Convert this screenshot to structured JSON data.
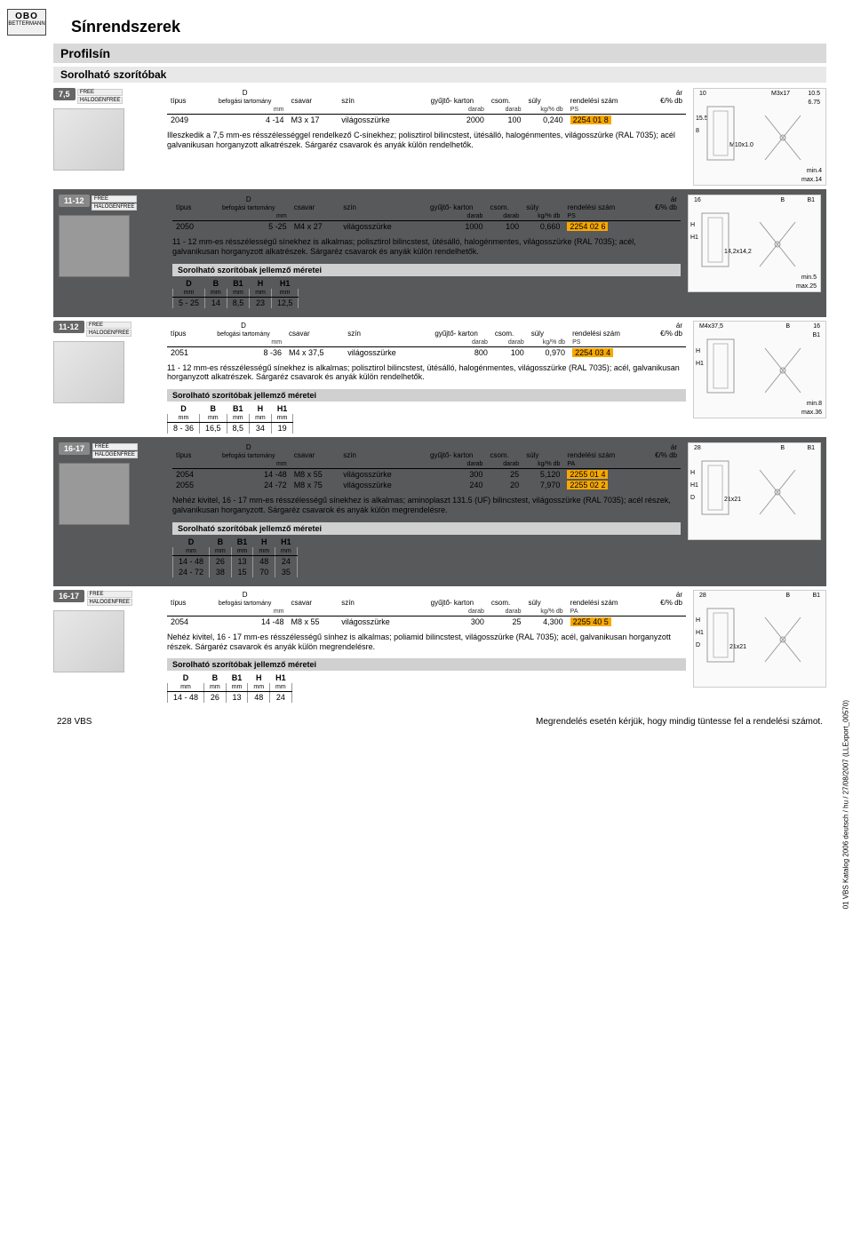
{
  "logo": {
    "brand": "OBO",
    "sub": "BETTERMANN"
  },
  "page_title": "Sínrendszerek",
  "section": "Profilsín",
  "subsection": "Sorolható szorítóbak",
  "headers": {
    "tipus": "típus",
    "D": "D",
    "D_sub": "befogási\ntartomány",
    "csavar": "csavar",
    "szin": "szín",
    "gyujto": "gyűjtő-\nkarton",
    "csom": "csom.",
    "suly": "súly",
    "rendelesi": "rendelési\nszám",
    "ar": "ár",
    "ar_unit": "€/% db"
  },
  "units": {
    "D": "mm",
    "gyujto": "darab",
    "csom": "darab",
    "suly": "kg/% db",
    "rend": "PS"
  },
  "dim_headers": [
    "D",
    "B",
    "B1",
    "H",
    "H1"
  ],
  "dim_units": [
    "mm",
    "mm",
    "mm",
    "mm",
    "mm"
  ],
  "dim_title": "Sorolható szorítóbak jellemző méretei",
  "blocks": [
    {
      "badge": "7,5",
      "dark": false,
      "rows": [
        {
          "tipus": "2049",
          "D": "4 -14",
          "csavar": "M3 x 17",
          "szin": "világosszürke",
          "gyujto": "2000",
          "csom": "100",
          "suly": "0,240",
          "rend": "2254 01 8"
        }
      ],
      "desc": "Illeszkedik a 7,5 mm-es résszélességgel rendelkező C-sínekhez; polisztirol bilincstest, ütésálló, halogénmentes, világosszürke (RAL 7035); acél galvanikusan horganyzott alkatrészek. Sárgaréz csavarok és anyák külön rendelhetők.",
      "draw": {
        "top_l": "10",
        "top_r": "M3x17",
        "top_r2": "10.5",
        "top_r3": "6.75",
        "side": "15.5",
        "side2": "8",
        "mid": "M10x1.0",
        "bot1": "min.4",
        "bot2": "max.14"
      },
      "dims": null
    },
    {
      "badge": "11-12",
      "dark": true,
      "rows": [
        {
          "tipus": "2050",
          "D": "5 -25",
          "csavar": "M4 x 27",
          "szin": "világosszürke",
          "gyujto": "1000",
          "csom": "100",
          "suly": "0,660",
          "rend": "2254 02 6"
        }
      ],
      "desc": "11 - 12 mm-es résszélességű sínekhez is alkalmas; polisztirol bilincstest, ütésálló, halogénmentes, világosszürke (RAL 7035); acél, galvanikusan horganyzott alkatrészek. Sárgaréz csavarok és anyák külön rendelhetők.",
      "draw": {
        "top_l": "16",
        "top_r": "B",
        "top_r2": "B1",
        "side": "H",
        "side2": "H1",
        "mid": "14,2x14,2",
        "bot1": "min.5",
        "bot2": "max.25"
      },
      "dims": [
        [
          "5 - 25",
          "14",
          "8,5",
          "23",
          "12,5"
        ]
      ]
    },
    {
      "badge": "11-12",
      "dark": false,
      "rows": [
        {
          "tipus": "2051",
          "D": "8 -36",
          "csavar": "M4 x 37,5",
          "szin": "világosszürke",
          "gyujto": "800",
          "csom": "100",
          "suly": "0,970",
          "rend": "2254 03 4"
        }
      ],
      "desc": "11 - 12 mm-es résszélességű sínekhez is alkalmas; polisztirol bilincstest, ütésálló, halogénmentes, világosszürke (RAL 7035); acél, galvanikusan horganyzott alkatrészek. Sárgaréz csavarok és anyák külön rendelhetők.",
      "draw": {
        "top_l": "M4x37,5",
        "top_r": "B",
        "top_r2": "16",
        "top_r3": "B1",
        "side": "H",
        "side2": "H1",
        "mid": "",
        "bot1": "min.8",
        "bot2": "max.36"
      },
      "dims": [
        [
          "8 - 36",
          "16,5",
          "8,5",
          "34",
          "19"
        ]
      ]
    },
    {
      "badge": "16-17",
      "dark": true,
      "rend_unit": "PA",
      "rows": [
        {
          "tipus": "2054",
          "D": "14 -48",
          "csavar": "M8 x 55",
          "szin": "világosszürke",
          "gyujto": "300",
          "csom": "25",
          "suly": "5,120",
          "rend": "2255 01 4"
        },
        {
          "tipus": "2055",
          "D": "24 -72",
          "csavar": "M8 x 75",
          "szin": "világosszürke",
          "gyujto": "240",
          "csom": "20",
          "suly": "7,970",
          "rend": "2255 02 2"
        }
      ],
      "desc": "Nehéz kivitel, 16 - 17 mm-es résszélességű sínekhez is alkalmas; aminoplaszt 131.5 (UF) bilincstest, világosszürke (RAL 7035); acél részek, galvanikusan horganyzott. Sárgaréz csavarok és anyák külön megrendelésre.",
      "draw": {
        "top_l": "28",
        "top_r": "B",
        "top_r2": "B1",
        "side": "H",
        "side2": "H1",
        "side3": "D",
        "mid": "21x21",
        "bot1": "",
        "bot2": ""
      },
      "dims": [
        [
          "14 - 48",
          "26",
          "13",
          "48",
          "24"
        ],
        [
          "24 - 72",
          "38",
          "15",
          "70",
          "35"
        ]
      ]
    },
    {
      "badge": "16-17",
      "dark": false,
      "rend_unit": "PA",
      "rows": [
        {
          "tipus": "2054",
          "D": "14 -48",
          "csavar": "M8 x 55",
          "szin": "világosszürke",
          "gyujto": "300",
          "csom": "25",
          "suly": "4,300",
          "rend": "2255 40 5"
        }
      ],
      "desc": "Nehéz kivitel, 16 - 17 mm-es résszélességű sínhez is alkalmas; poliamid bilincstest, világosszürke (RAL 7035); acél, galvanikusan horganyzott részek. Sárgaréz csavarok és anyák külön megrendelésre.",
      "draw": {
        "top_l": "28",
        "top_r": "B",
        "top_r2": "B1",
        "side": "H",
        "side2": "H1",
        "side3": "D",
        "mid": "21x21",
        "bot1": "",
        "bot2": ""
      },
      "dims": [
        [
          "14 - 48",
          "26",
          "13",
          "48",
          "24"
        ]
      ]
    }
  ],
  "footer": {
    "left": "228 VBS",
    "right": "Megrendelés esetén kérjük, hogy mindig tüntesse fel a rendelési számot."
  },
  "side": "01 VBS Katalog 2006 deutsch / hu / 27/08/2007 (LLExport_00570)"
}
